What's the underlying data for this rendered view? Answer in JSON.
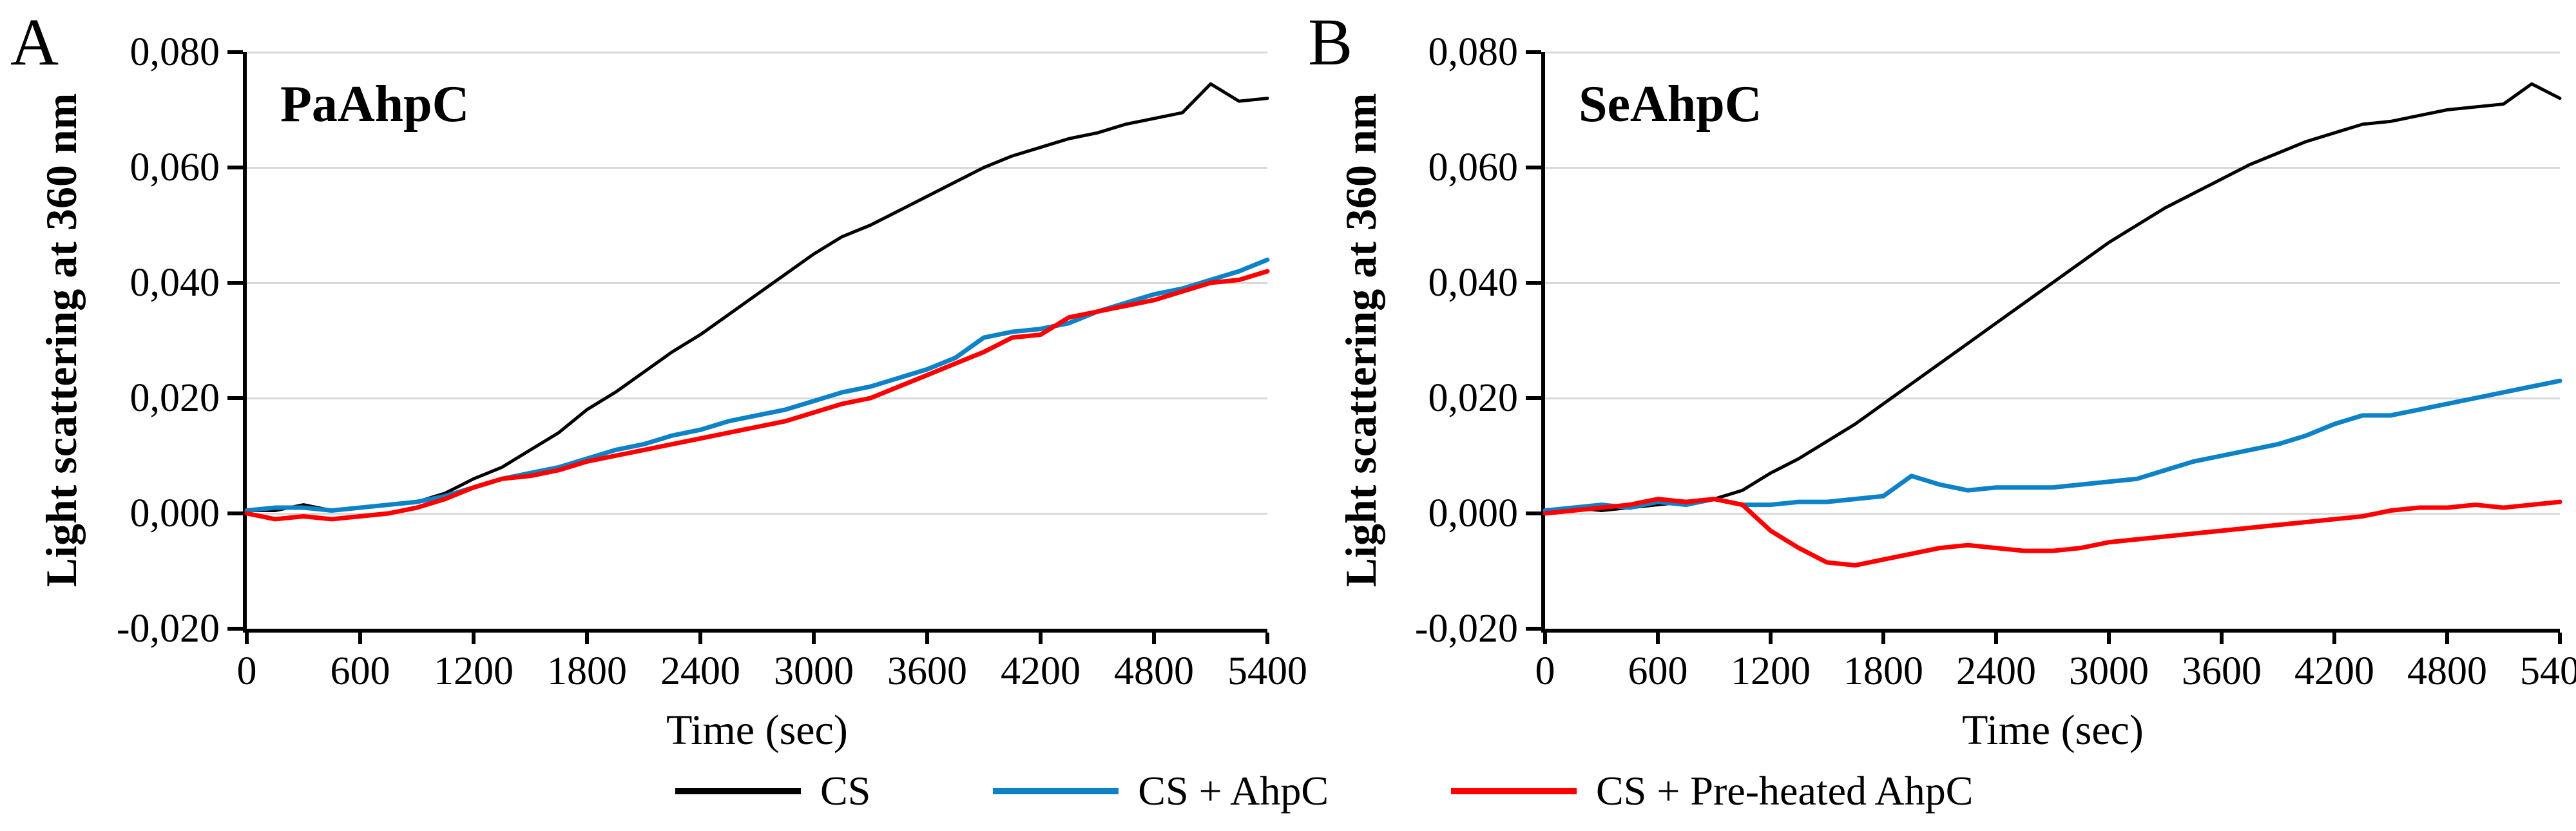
{
  "panels": [
    {
      "letter": "A",
      "title": "PaAhpC",
      "y_axis_title": "Light scattering at 360 nm",
      "x_axis_title": "Time (sec)",
      "y_tick_labels": [
        "0,080",
        "0,060",
        "0,040",
        "0,020",
        "0,000",
        "-0,020"
      ],
      "x_tick_labels": [
        "0",
        "600",
        "1200",
        "1800",
        "2400",
        "3000",
        "3600",
        "4200",
        "4800",
        "5400"
      ]
    },
    {
      "letter": "B",
      "title": "SeAhpC",
      "y_axis_title": "Light scattering at 360 nm",
      "x_axis_title": "Time (sec)",
      "y_tick_labels": [
        "0,080",
        "0,060",
        "0,040",
        "0,020",
        "0,000",
        "-0,020"
      ],
      "x_tick_labels": [
        "0",
        "600",
        "1200",
        "1800",
        "2400",
        "3000",
        "3600",
        "4200",
        "4800",
        "5400"
      ]
    }
  ],
  "legend": [
    {
      "label": "CS",
      "color": "#000000"
    },
    {
      "label": "CS + AhpC",
      "color": "#0e82c6"
    },
    {
      "label": "CS + Pre-heated AhpC",
      "color": "#ff0000"
    }
  ],
  "colors": {
    "cs": "#000000",
    "cs_ahpc": "#0e82c6",
    "cs_preheated_ahpc": "#ff0000",
    "gridline": "#d9d9d9",
    "axis": "#000000",
    "background": "#ffffff"
  },
  "chart_data": [
    {
      "type": "line",
      "title": "PaAhpC",
      "xlabel": "Time (sec)",
      "ylabel": "Light scattering at 360 nm",
      "xlim": [
        0,
        5400
      ],
      "ylim": [
        -0.02,
        0.08
      ],
      "x_ticks": [
        0,
        600,
        1200,
        1800,
        2400,
        3000,
        3600,
        4200,
        4800,
        5400
      ],
      "y_ticks": [
        0.08,
        0.06,
        0.04,
        0.02,
        0.0,
        -0.02
      ],
      "grid": "horizontal",
      "legend_position": "bottom",
      "x": [
        0,
        150,
        300,
        450,
        600,
        750,
        900,
        1050,
        1200,
        1350,
        1500,
        1650,
        1800,
        1950,
        2100,
        2250,
        2400,
        2550,
        2700,
        2850,
        3000,
        3150,
        3300,
        3450,
        3600,
        3750,
        3900,
        4050,
        4200,
        4350,
        4500,
        4650,
        4800,
        4950,
        5100,
        5250,
        5400
      ],
      "series": [
        {
          "name": "CS",
          "color": "#000000",
          "values": [
            0.0005,
            0.0005,
            0.0015,
            0.0005,
            0.001,
            0.0015,
            0.002,
            0.0035,
            0.006,
            0.008,
            0.011,
            0.014,
            0.018,
            0.021,
            0.0245,
            0.028,
            0.031,
            0.0345,
            0.038,
            0.0415,
            0.045,
            0.048,
            0.05,
            0.0525,
            0.055,
            0.0575,
            0.06,
            0.062,
            0.0635,
            0.065,
            0.066,
            0.0675,
            0.0685,
            0.0695,
            0.0745,
            0.0715,
            0.072
          ]
        },
        {
          "name": "CS + AhpC",
          "color": "#0e82c6",
          "values": [
            0.0005,
            0.001,
            0.001,
            0.0005,
            0.001,
            0.0015,
            0.002,
            0.003,
            0.0045,
            0.006,
            0.007,
            0.008,
            0.0095,
            0.011,
            0.012,
            0.0135,
            0.0145,
            0.016,
            0.017,
            0.018,
            0.0195,
            0.021,
            0.022,
            0.0235,
            0.025,
            0.027,
            0.0305,
            0.0315,
            0.032,
            0.033,
            0.035,
            0.0365,
            0.038,
            0.039,
            0.0405,
            0.042,
            0.044
          ]
        },
        {
          "name": "CS + Pre-heated AhpC",
          "color": "#ff0000",
          "values": [
            0.0,
            -0.001,
            -0.0005,
            -0.001,
            -0.0005,
            0.0,
            0.001,
            0.0025,
            0.0045,
            0.006,
            0.0065,
            0.0075,
            0.009,
            0.01,
            0.011,
            0.012,
            0.013,
            0.014,
            0.015,
            0.016,
            0.0175,
            0.019,
            0.02,
            0.022,
            0.024,
            0.026,
            0.028,
            0.0305,
            0.031,
            0.034,
            0.035,
            0.036,
            0.037,
            0.0385,
            0.04,
            0.0405,
            0.042
          ]
        }
      ]
    },
    {
      "type": "line",
      "title": "SeAhpC",
      "xlabel": "Time (sec)",
      "ylabel": "Light scattering at 360 nm",
      "xlim": [
        0,
        5400
      ],
      "ylim": [
        -0.02,
        0.08
      ],
      "x_ticks": [
        0,
        600,
        1200,
        1800,
        2400,
        3000,
        3600,
        4200,
        4800,
        5400
      ],
      "y_ticks": [
        0.08,
        0.06,
        0.04,
        0.02,
        0.0,
        -0.02
      ],
      "grid": "horizontal",
      "legend_position": "bottom",
      "x": [
        0,
        150,
        300,
        450,
        600,
        750,
        900,
        1050,
        1200,
        1350,
        1500,
        1650,
        1800,
        1950,
        2100,
        2250,
        2400,
        2550,
        2700,
        2850,
        3000,
        3150,
        3300,
        3450,
        3600,
        3750,
        3900,
        4050,
        4200,
        4350,
        4500,
        4650,
        4800,
        4950,
        5100,
        5250,
        5400
      ],
      "series": [
        {
          "name": "CS",
          "color": "#000000",
          "values": [
            0.0005,
            0.001,
            0.0005,
            0.001,
            0.0015,
            0.002,
            0.0025,
            0.004,
            0.007,
            0.0095,
            0.0125,
            0.0155,
            0.019,
            0.0225,
            0.026,
            0.0295,
            0.033,
            0.0365,
            0.04,
            0.0435,
            0.047,
            0.05,
            0.053,
            0.0555,
            0.058,
            0.0605,
            0.0625,
            0.0645,
            0.066,
            0.0675,
            0.068,
            0.069,
            0.07,
            0.0705,
            0.071,
            0.0745,
            0.072
          ]
        },
        {
          "name": "CS + AhpC",
          "color": "#0e82c6",
          "values": [
            0.0005,
            0.001,
            0.0015,
            0.001,
            0.002,
            0.0015,
            0.0025,
            0.0015,
            0.0015,
            0.002,
            0.002,
            0.0025,
            0.003,
            0.0065,
            0.005,
            0.004,
            0.0045,
            0.0045,
            0.0045,
            0.005,
            0.0055,
            0.006,
            0.0075,
            0.009,
            0.01,
            0.011,
            0.012,
            0.0135,
            0.0155,
            0.017,
            0.017,
            0.018,
            0.019,
            0.02,
            0.021,
            0.022,
            0.023
          ]
        },
        {
          "name": "CS + Pre-heated AhpC",
          "color": "#ff0000",
          "values": [
            0.0,
            0.0005,
            0.001,
            0.0015,
            0.0025,
            0.002,
            0.0025,
            0.0015,
            -0.003,
            -0.006,
            -0.0085,
            -0.009,
            -0.008,
            -0.007,
            -0.006,
            -0.0055,
            -0.006,
            -0.0065,
            -0.0065,
            -0.006,
            -0.005,
            -0.0045,
            -0.004,
            -0.0035,
            -0.003,
            -0.0025,
            -0.002,
            -0.0015,
            -0.001,
            -0.0005,
            0.0005,
            0.001,
            0.001,
            0.0015,
            0.001,
            0.0015,
            0.002
          ]
        }
      ]
    }
  ]
}
